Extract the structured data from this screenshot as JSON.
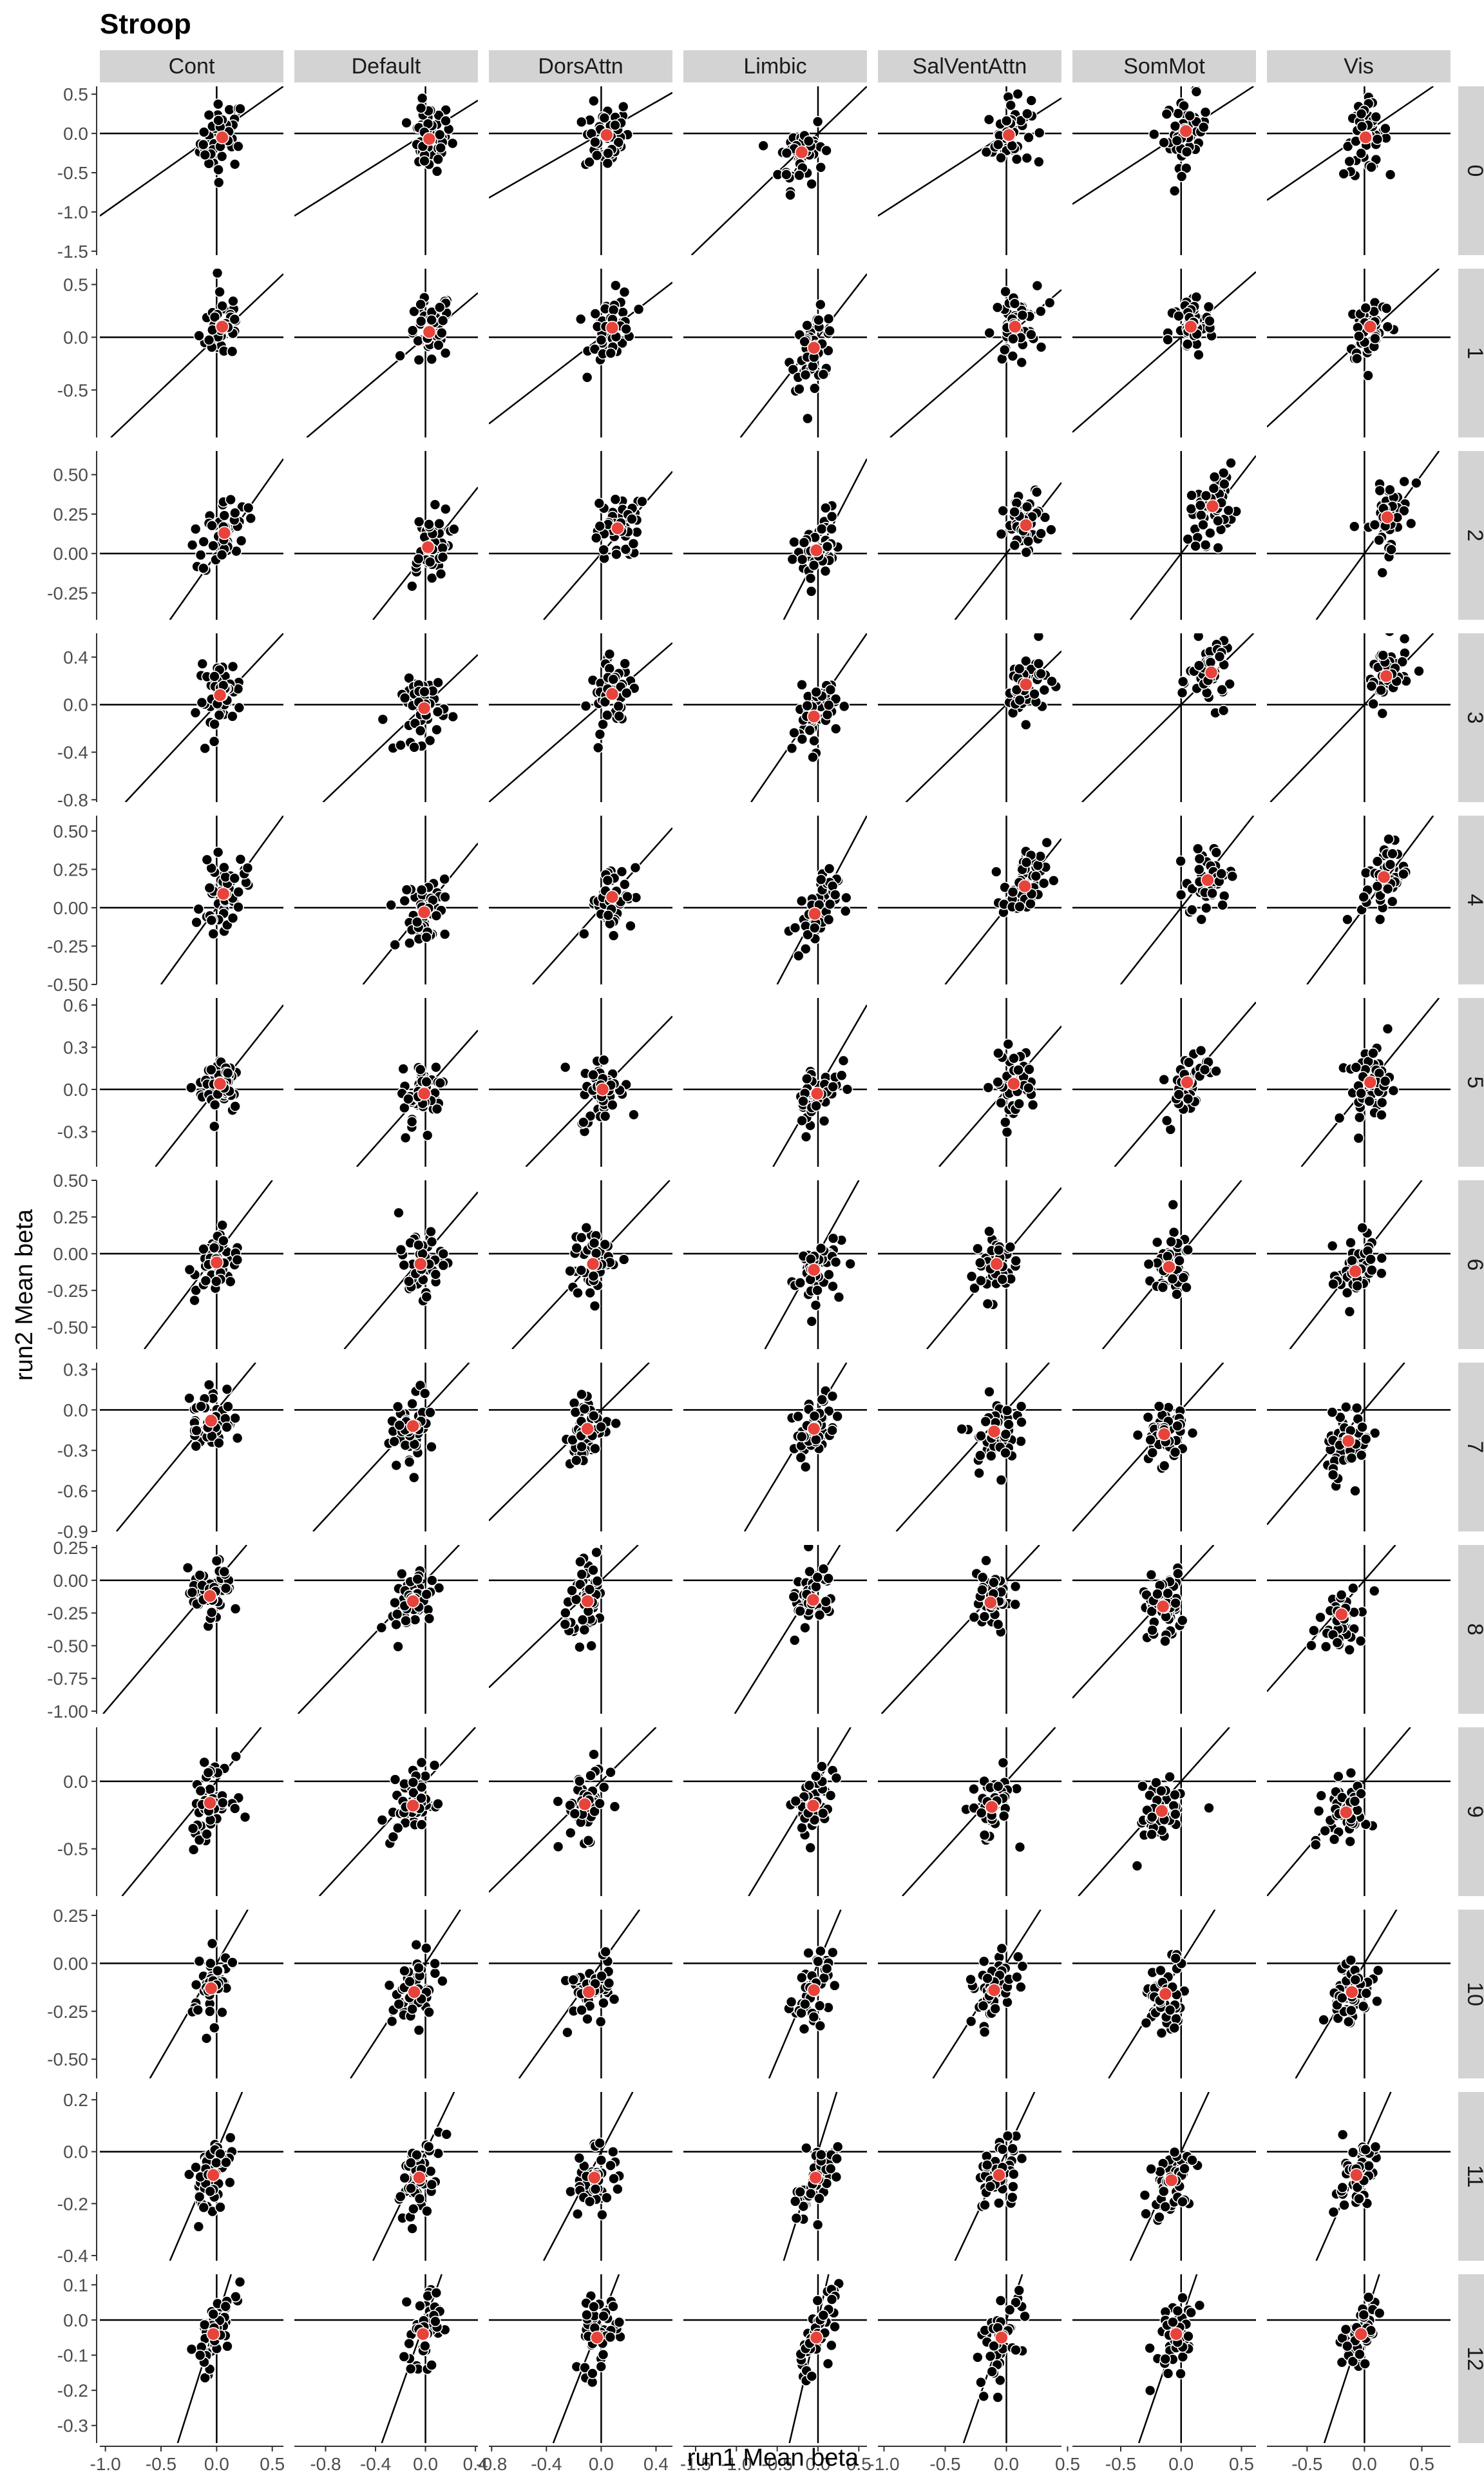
{
  "chart_data": {
    "type": "scatter",
    "title": "Stroop",
    "xlabel": "run1 Mean beta",
    "ylabel": "run2 Mean beta",
    "facet_columns": [
      "Cont",
      "Default",
      "DorsAttn",
      "Limbic",
      "SalVentAttn",
      "SomMot",
      "Vis"
    ],
    "facet_rows": [
      "0",
      "1",
      "2",
      "3",
      "4",
      "5",
      "6",
      "7",
      "8",
      "9",
      "10",
      "11",
      "12"
    ],
    "reference_lines": [
      "x = 0",
      "y = 0",
      "y = x"
    ],
    "colors": {
      "points": "#000000",
      "point_outline": "#ffffff",
      "mean_point": "#e8433a",
      "strip": "#d3d3d3"
    },
    "x_axes": [
      {
        "column": "Cont",
        "xlim": [
          -1.05,
          0.6
        ],
        "ticks": [
          "-1.0",
          "-0.5",
          "0.0",
          "0.5"
        ]
      },
      {
        "column": "Default",
        "xlim": [
          -1.05,
          0.42
        ],
        "ticks": [
          "-0.8",
          "-0.4",
          "0.0",
          "0.4"
        ]
      },
      {
        "column": "DorsAttn",
        "xlim": [
          -0.82,
          0.52
        ],
        "ticks": [
          "-0.8",
          "-0.4",
          "0.0",
          "0.4"
        ]
      },
      {
        "column": "Limbic",
        "xlim": [
          -1.65,
          0.6
        ],
        "ticks": [
          "-1.5",
          "-1.0",
          "-0.5",
          "0.0",
          "0.5"
        ]
      },
      {
        "column": "SalVentAttn",
        "xlim": [
          -1.05,
          0.45
        ],
        "ticks": [
          "-1.0",
          "-0.5",
          "0.0",
          "0.5"
        ]
      },
      {
        "column": "SomMot",
        "xlim": [
          -0.9,
          0.62
        ],
        "ticks": [
          "-0.5",
          "0.0",
          "0.5"
        ]
      },
      {
        "column": "Vis",
        "xlim": [
          -0.85,
          0.75
        ],
        "ticks": [
          "-0.5",
          "0.0",
          "0.5"
        ]
      }
    ],
    "y_axes": [
      {
        "row": "0",
        "ylim": [
          -1.55,
          0.6
        ],
        "ticks": [
          "0.5",
          "0.0",
          "-0.5",
          "-1.0",
          "-1.5"
        ]
      },
      {
        "row": "1",
        "ylim": [
          -0.95,
          0.65
        ],
        "ticks": [
          "0.5",
          "0.0",
          "-0.5"
        ]
      },
      {
        "row": "2",
        "ylim": [
          -0.42,
          0.65
        ],
        "ticks": [
          "0.50",
          "0.25",
          "0.00",
          "-0.25"
        ]
      },
      {
        "row": "3",
        "ylim": [
          -0.82,
          0.6
        ],
        "ticks": [
          "0.4",
          "0.0",
          "-0.4",
          "-0.8"
        ]
      },
      {
        "row": "4",
        "ylim": [
          -0.5,
          0.6
        ],
        "ticks": [
          "0.50",
          "0.25",
          "0.00",
          "-0.25",
          "-0.50"
        ]
      },
      {
        "row": "5",
        "ylim": [
          -0.55,
          0.65
        ],
        "ticks": [
          "0.6",
          "0.3",
          "0.0",
          "-0.3"
        ]
      },
      {
        "row": "6",
        "ylim": [
          -0.65,
          0.5
        ],
        "ticks": [
          "0.50",
          "0.25",
          "0.00",
          "-0.25",
          "-0.50"
        ]
      },
      {
        "row": "7",
        "ylim": [
          -0.9,
          0.35
        ],
        "ticks": [
          "0.3",
          "0.0",
          "-0.3",
          "-0.6",
          "-0.9"
        ]
      },
      {
        "row": "8",
        "ylim": [
          -1.02,
          0.27
        ],
        "ticks": [
          "0.25",
          "0.00",
          "-0.25",
          "-0.50",
          "-0.75",
          "-1.00"
        ]
      },
      {
        "row": "9",
        "ylim": [
          -0.85,
          0.4
        ],
        "ticks": [
          "0.0",
          "-0.5"
        ]
      },
      {
        "row": "10",
        "ylim": [
          -0.6,
          0.28
        ],
        "ticks": [
          "0.25",
          "0.00",
          "-0.25",
          "-0.50"
        ]
      },
      {
        "row": "11",
        "ylim": [
          -0.42,
          0.23
        ],
        "ticks": [
          "0.2",
          "0.0",
          "-0.2",
          "-0.4"
        ]
      },
      {
        "row": "12",
        "ylim": [
          -0.35,
          0.13
        ],
        "ticks": [
          "0.1",
          "0.0",
          "-0.1",
          "-0.2",
          "-0.3"
        ]
      }
    ],
    "mean_points": [
      [
        [
          0.05,
          -0.05
        ],
        [
          0.03,
          -0.07
        ],
        [
          0.04,
          -0.02
        ],
        [
          -0.2,
          -0.24
        ],
        [
          0.02,
          -0.02
        ],
        [
          0.04,
          0.03
        ],
        [
          0.01,
          -0.05
        ]
      ],
      [
        [
          0.05,
          0.1
        ],
        [
          0.03,
          0.05
        ],
        [
          0.08,
          0.09
        ],
        [
          -0.05,
          -0.1
        ],
        [
          0.07,
          0.1
        ],
        [
          0.08,
          0.1
        ],
        [
          0.05,
          0.1
        ]
      ],
      [
        [
          0.07,
          0.13
        ],
        [
          0.02,
          0.04
        ],
        [
          0.12,
          0.16
        ],
        [
          -0.02,
          0.02
        ],
        [
          0.16,
          0.18
        ],
        [
          0.26,
          0.3
        ],
        [
          0.2,
          0.23
        ]
      ],
      [
        [
          0.03,
          0.08
        ],
        [
          -0.01,
          -0.03
        ],
        [
          0.08,
          0.09
        ],
        [
          -0.05,
          -0.1
        ],
        [
          0.16,
          0.17
        ],
        [
          0.25,
          0.27
        ],
        [
          0.19,
          0.24
        ]
      ],
      [
        [
          0.06,
          0.09
        ],
        [
          -0.01,
          -0.03
        ],
        [
          0.08,
          0.07
        ],
        [
          -0.04,
          -0.04
        ],
        [
          0.15,
          0.14
        ],
        [
          0.22,
          0.18
        ],
        [
          0.17,
          0.2
        ]
      ],
      [
        [
          0.03,
          0.04
        ],
        [
          -0.01,
          -0.03
        ],
        [
          0.01,
          0.0
        ],
        [
          -0.01,
          -0.03
        ],
        [
          0.06,
          0.04
        ],
        [
          0.05,
          0.05
        ],
        [
          0.05,
          0.05
        ]
      ],
      [
        [
          0.0,
          -0.06
        ],
        [
          -0.04,
          -0.07
        ],
        [
          -0.06,
          -0.07
        ],
        [
          -0.05,
          -0.11
        ],
        [
          -0.08,
          -0.07
        ],
        [
          -0.1,
          -0.09
        ],
        [
          -0.08,
          -0.12
        ]
      ],
      [
        [
          -0.05,
          -0.08
        ],
        [
          -0.1,
          -0.12
        ],
        [
          -0.1,
          -0.14
        ],
        [
          -0.05,
          -0.14
        ],
        [
          -0.1,
          -0.16
        ],
        [
          -0.14,
          -0.18
        ],
        [
          -0.14,
          -0.23
        ]
      ],
      [
        [
          -0.06,
          -0.12
        ],
        [
          -0.1,
          -0.16
        ],
        [
          -0.1,
          -0.16
        ],
        [
          -0.06,
          -0.15
        ],
        [
          -0.13,
          -0.17
        ],
        [
          -0.15,
          -0.2
        ],
        [
          -0.2,
          -0.26
        ]
      ],
      [
        [
          -0.06,
          -0.16
        ],
        [
          -0.1,
          -0.18
        ],
        [
          -0.12,
          -0.17
        ],
        [
          -0.06,
          -0.18
        ],
        [
          -0.12,
          -0.19
        ],
        [
          -0.16,
          -0.22
        ],
        [
          -0.16,
          -0.23
        ]
      ],
      [
        [
          -0.05,
          -0.13
        ],
        [
          -0.09,
          -0.15
        ],
        [
          -0.09,
          -0.15
        ],
        [
          -0.05,
          -0.14
        ],
        [
          -0.1,
          -0.14
        ],
        [
          -0.13,
          -0.16
        ],
        [
          -0.11,
          -0.15
        ]
      ],
      [
        [
          -0.03,
          -0.09
        ],
        [
          -0.05,
          -0.1
        ],
        [
          -0.05,
          -0.1
        ],
        [
          -0.03,
          -0.1
        ],
        [
          -0.06,
          -0.09
        ],
        [
          -0.08,
          -0.11
        ],
        [
          -0.07,
          -0.09
        ]
      ],
      [
        [
          -0.03,
          -0.04
        ],
        [
          -0.02,
          -0.04
        ],
        [
          -0.03,
          -0.05
        ],
        [
          -0.02,
          -0.05
        ],
        [
          -0.04,
          -0.05
        ],
        [
          -0.04,
          -0.04
        ],
        [
          -0.03,
          -0.04
        ]
      ]
    ],
    "points_note": "Each of the 91 panels also shows a cloud of about 50 black points (one per subject) around the red group-mean point."
  }
}
